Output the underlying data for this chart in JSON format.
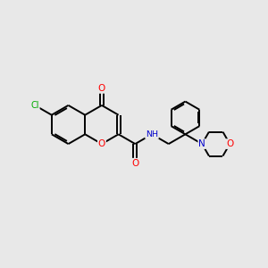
{
  "background_color": "#e8e8e8",
  "bond_color": "#000000",
  "atom_colors": {
    "O": "#ff0000",
    "N": "#0000cc",
    "Cl": "#00aa00",
    "H": "#555555",
    "C": "#000000"
  },
  "figsize": [
    3.0,
    3.0
  ],
  "dpi": 100
}
